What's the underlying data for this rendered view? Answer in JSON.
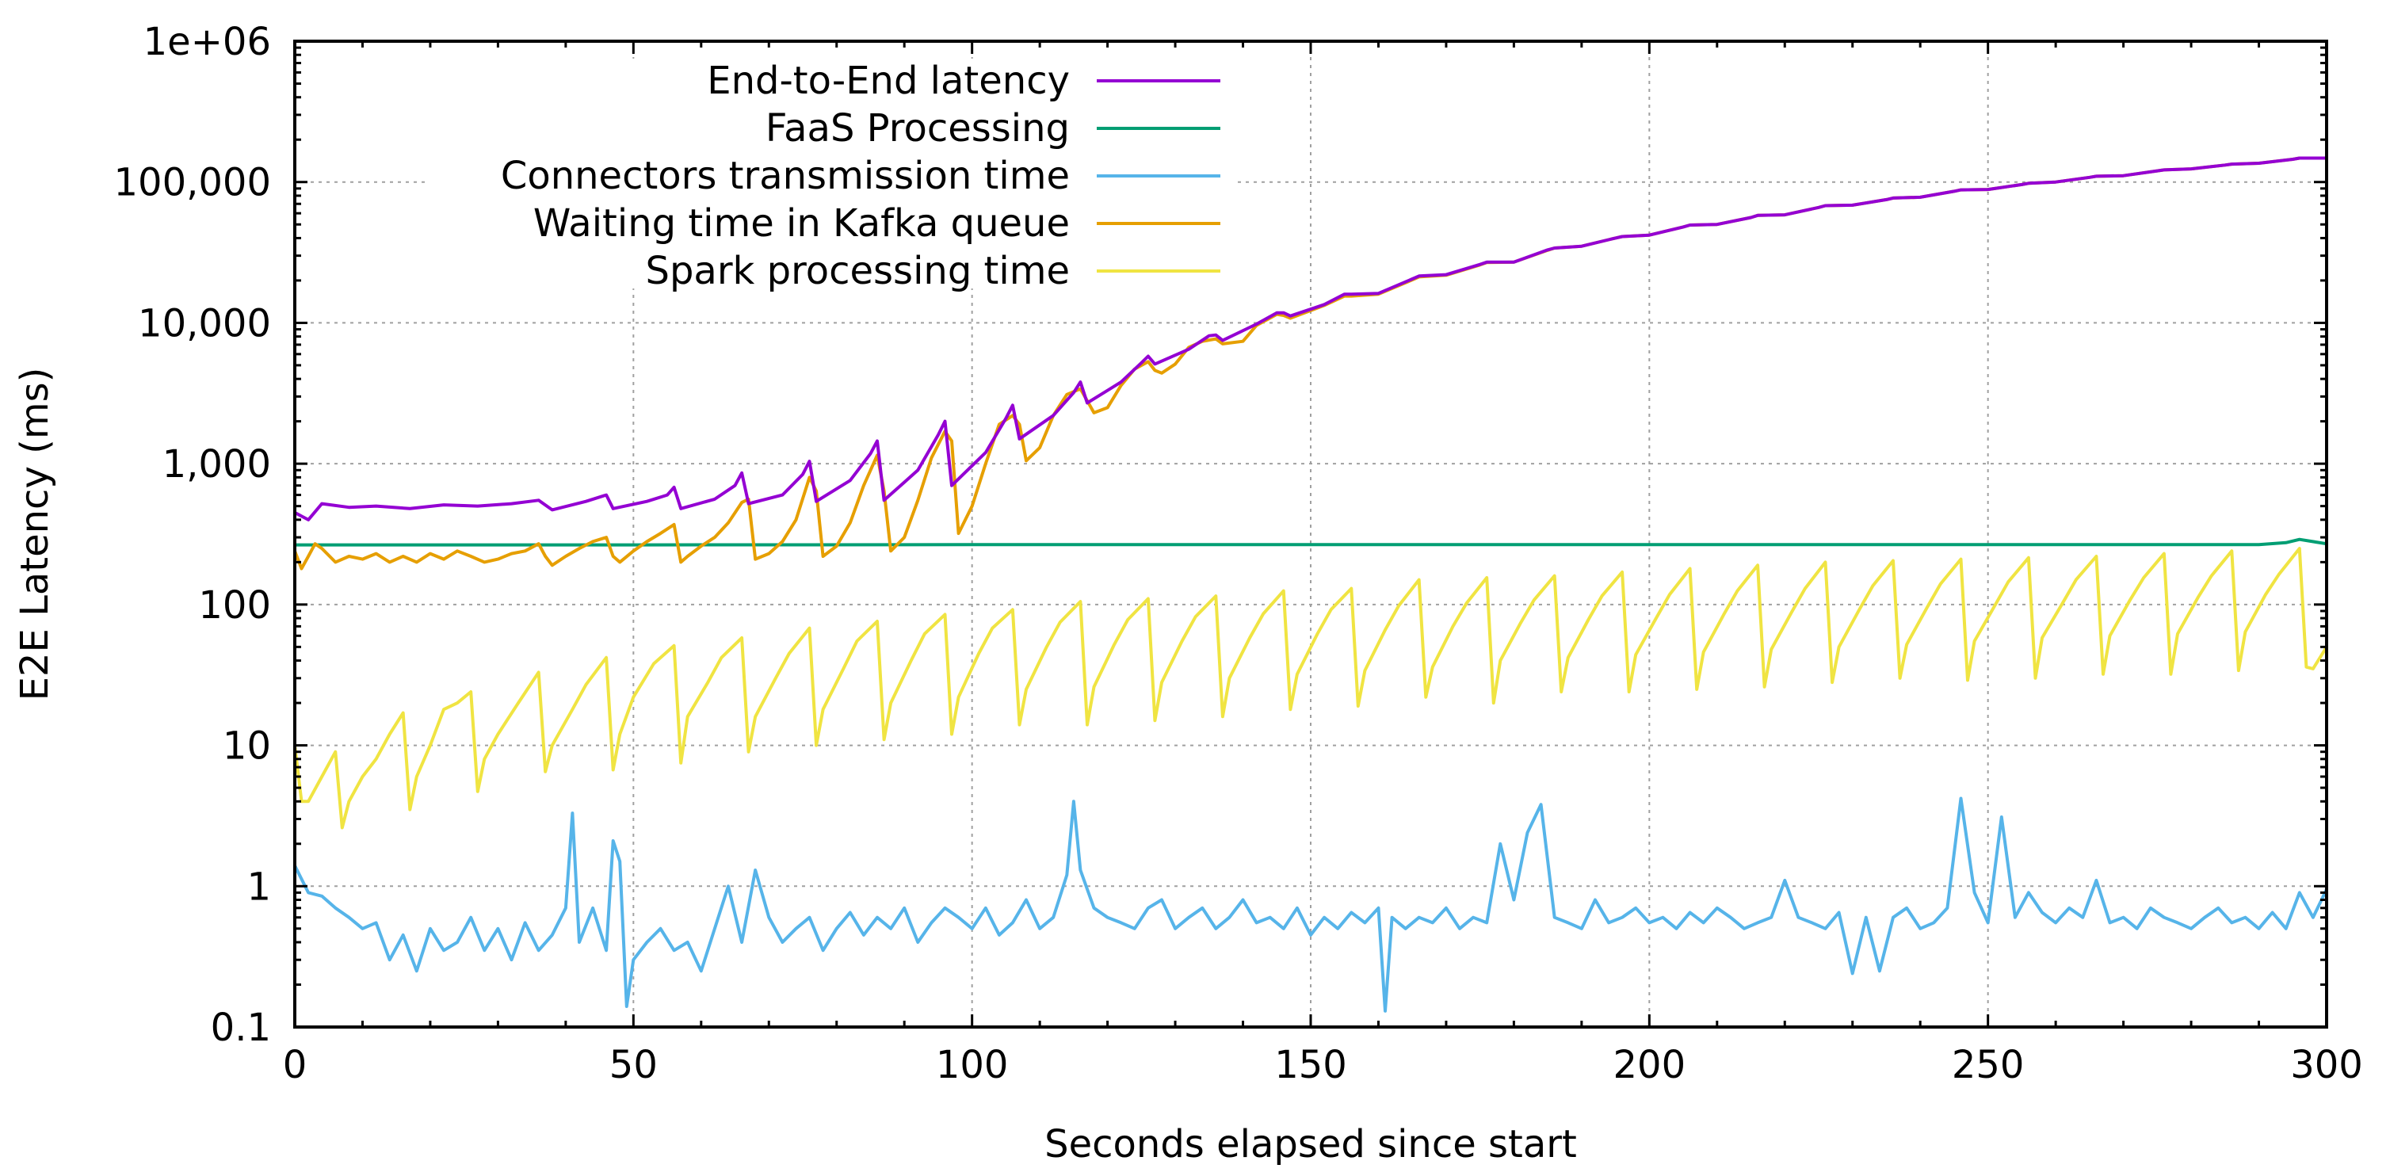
{
  "chart_data": {
    "type": "line",
    "title": "",
    "xlabel": "Seconds elapsed since start",
    "ylabel": "E2E Latency (ms)",
    "x_range": [
      0,
      300
    ],
    "y_range": [
      0.1,
      1000000
    ],
    "y_scale": "log",
    "grid": true,
    "legend_position": "top-left",
    "x_ticks": [
      {
        "value": 0,
        "label": "0"
      },
      {
        "value": 50,
        "label": "50"
      },
      {
        "value": 100,
        "label": "100"
      },
      {
        "value": 150,
        "label": "150"
      },
      {
        "value": 200,
        "label": "200"
      },
      {
        "value": 250,
        "label": "250"
      },
      {
        "value": 300,
        "label": "300"
      }
    ],
    "y_ticks": [
      {
        "value": 0.1,
        "label": "0.1"
      },
      {
        "value": 1,
        "label": "1"
      },
      {
        "value": 10,
        "label": "10"
      },
      {
        "value": 100,
        "label": "100"
      },
      {
        "value": 1000,
        "label": "1,000"
      },
      {
        "value": 10000,
        "label": "10,000"
      },
      {
        "value": 100000,
        "label": "100,000"
      },
      {
        "value": 1000000,
        "label": "1e+06"
      }
    ],
    "series": [
      {
        "name": "End-to-End latency",
        "color": "#9400d3",
        "x": [
          0,
          2,
          4,
          8,
          12,
          17,
          22,
          27,
          32,
          36,
          38,
          43,
          46,
          47,
          52,
          55,
          56,
          57,
          62,
          65,
          66,
          67,
          72,
          75,
          76,
          77,
          82,
          85,
          86,
          87,
          92,
          95,
          96,
          97,
          102,
          105,
          106,
          107,
          112,
          115,
          116,
          117,
          122,
          125,
          126,
          127,
          132,
          135,
          136,
          137,
          142,
          145,
          146,
          147,
          152,
          155,
          156,
          160,
          165,
          166,
          170,
          175,
          176,
          180,
          185,
          186,
          190,
          195,
          196,
          200,
          205,
          206,
          210,
          215,
          216,
          220,
          225,
          226,
          230,
          235,
          236,
          240,
          245,
          246,
          250,
          255,
          256,
          260,
          265,
          266,
          270,
          275,
          276,
          280,
          285,
          286,
          290,
          295,
          296,
          300
        ],
        "values": [
          450,
          400,
          520,
          490,
          500,
          480,
          510,
          500,
          520,
          550,
          470,
          540,
          600,
          480,
          540,
          600,
          680,
          480,
          560,
          700,
          860,
          520,
          600,
          840,
          1040,
          540,
          760,
          1180,
          1450,
          550,
          900,
          1600,
          2000,
          700,
          1200,
          2100,
          2600,
          1500,
          2200,
          3200,
          3800,
          2700,
          3800,
          5200,
          5800,
          5100,
          6500,
          8100,
          8200,
          7500,
          9800,
          11800,
          11800,
          11200,
          13500,
          16000,
          16000,
          16200,
          20500,
          21500,
          22000,
          26000,
          27000,
          27000,
          33000,
          34000,
          35000,
          40000,
          41000,
          42000,
          48000,
          49500,
          50000,
          56000,
          58000,
          58500,
          66000,
          68000,
          68500,
          75000,
          77000,
          78000,
          86000,
          88000,
          88500,
          96000,
          98000,
          100000,
          108000,
          110000,
          111000,
          120000,
          122000,
          124000,
          132000,
          134000,
          136000,
          145000,
          148000,
          148000
        ]
      },
      {
        "name": "FaaS Processing",
        "color": "#009e73",
        "x": [
          0,
          50,
          100,
          150,
          200,
          250,
          290,
          294,
          296,
          300
        ],
        "values": [
          265,
          265,
          266,
          266,
          266,
          266,
          266,
          275,
          290,
          270
        ]
      },
      {
        "name": "Connectors transmission time",
        "color": "#56b4e9",
        "x": [
          0,
          2,
          4,
          6,
          8,
          10,
          12,
          14,
          16,
          18,
          20,
          22,
          24,
          26,
          28,
          30,
          32,
          34,
          36,
          38,
          40,
          41,
          42,
          44,
          46,
          47,
          48,
          49,
          50,
          52,
          54,
          56,
          58,
          60,
          62,
          64,
          66,
          68,
          70,
          72,
          74,
          76,
          78,
          80,
          82,
          84,
          86,
          88,
          90,
          92,
          94,
          96,
          98,
          100,
          102,
          104,
          106,
          108,
          110,
          112,
          114,
          115,
          116,
          118,
          120,
          122,
          124,
          126,
          128,
          130,
          132,
          134,
          136,
          138,
          140,
          142,
          144,
          146,
          148,
          150,
          152,
          154,
          156,
          158,
          160,
          161,
          162,
          164,
          166,
          168,
          170,
          172,
          174,
          176,
          178,
          180,
          182,
          184,
          186,
          188,
          190,
          192,
          194,
          196,
          198,
          200,
          202,
          204,
          206,
          208,
          210,
          212,
          214,
          216,
          218,
          220,
          222,
          224,
          226,
          228,
          230,
          232,
          234,
          236,
          238,
          240,
          242,
          244,
          246,
          248,
          250,
          252,
          254,
          256,
          258,
          260,
          262,
          264,
          266,
          268,
          270,
          272,
          274,
          276,
          278,
          280,
          282,
          284,
          286,
          288,
          290,
          292,
          294,
          296,
          298,
          300
        ],
        "values": [
          1.4,
          0.9,
          0.85,
          0.7,
          0.6,
          0.5,
          0.55,
          0.3,
          0.45,
          0.25,
          0.5,
          0.35,
          0.4,
          0.6,
          0.35,
          0.5,
          0.3,
          0.55,
          0.35,
          0.45,
          0.7,
          3.3,
          0.4,
          0.7,
          0.35,
          2.1,
          1.5,
          0.14,
          0.3,
          0.4,
          0.5,
          0.35,
          0.4,
          0.25,
          0.5,
          1.0,
          0.4,
          1.3,
          0.6,
          0.4,
          0.5,
          0.6,
          0.35,
          0.5,
          0.65,
          0.45,
          0.6,
          0.5,
          0.7,
          0.4,
          0.55,
          0.7,
          0.6,
          0.5,
          0.7,
          0.45,
          0.55,
          0.8,
          0.5,
          0.6,
          1.2,
          4.0,
          1.3,
          0.7,
          0.6,
          0.55,
          0.5,
          0.7,
          0.8,
          0.5,
          0.6,
          0.7,
          0.5,
          0.6,
          0.8,
          0.55,
          0.6,
          0.5,
          0.7,
          0.45,
          0.6,
          0.5,
          0.65,
          0.55,
          0.7,
          0.13,
          0.6,
          0.5,
          0.6,
          0.55,
          0.7,
          0.5,
          0.6,
          0.55,
          2.0,
          0.8,
          2.4,
          3.8,
          0.6,
          0.55,
          0.5,
          0.8,
          0.55,
          0.6,
          0.7,
          0.55,
          0.6,
          0.5,
          0.65,
          0.55,
          0.7,
          0.6,
          0.5,
          0.55,
          0.6,
          1.1,
          0.6,
          0.55,
          0.5,
          0.65,
          0.24,
          0.6,
          0.25,
          0.6,
          0.7,
          0.5,
          0.55,
          0.7,
          4.2,
          0.9,
          0.55,
          3.1,
          0.6,
          0.9,
          0.65,
          0.55,
          0.7,
          0.6,
          1.1,
          0.55,
          0.6,
          0.5,
          0.7,
          0.6,
          0.55,
          0.5,
          0.6,
          0.7,
          0.55,
          0.6,
          0.5,
          0.65,
          0.5,
          0.9,
          0.6,
          0.95
        ]
      },
      {
        "name": "Waiting time in Kafka queue",
        "color": "#e69f00",
        "x": [
          0,
          1,
          2,
          3,
          4,
          6,
          8,
          10,
          12,
          14,
          16,
          18,
          20,
          22,
          24,
          26,
          28,
          30,
          32,
          34,
          36,
          37,
          38,
          40,
          42,
          44,
          46,
          47,
          48,
          50,
          52,
          54,
          56,
          57,
          58,
          60,
          62,
          64,
          66,
          67,
          68,
          70,
          72,
          74,
          76,
          77,
          78,
          80,
          82,
          84,
          86,
          87,
          88,
          90,
          92,
          94,
          96,
          97,
          98,
          100,
          102,
          104,
          106,
          107,
          108,
          110,
          112,
          114,
          116,
          117,
          118,
          120,
          122,
          124,
          126,
          127,
          128,
          130,
          132,
          134,
          136,
          137,
          140,
          142,
          145,
          146,
          147,
          152,
          155,
          156,
          160,
          165,
          166,
          170,
          175,
          176,
          180,
          185,
          186,
          190,
          195,
          196,
          200,
          205,
          206,
          210,
          215,
          216,
          220,
          225,
          226,
          230,
          235,
          236,
          240,
          245,
          246,
          250,
          255,
          256,
          260,
          265,
          266,
          270,
          275,
          276,
          280,
          285,
          286,
          290,
          295,
          296,
          300
        ],
        "values": [
          240,
          180,
          220,
          270,
          250,
          200,
          220,
          210,
          230,
          200,
          220,
          200,
          230,
          210,
          240,
          220,
          200,
          210,
          230,
          240,
          270,
          220,
          190,
          220,
          250,
          280,
          300,
          220,
          200,
          240,
          280,
          320,
          370,
          200,
          220,
          260,
          300,
          380,
          530,
          560,
          210,
          230,
          280,
          400,
          800,
          640,
          220,
          260,
          380,
          700,
          1150,
          640,
          240,
          300,
          550,
          1100,
          1700,
          1450,
          320,
          500,
          1000,
          1900,
          2200,
          1900,
          1050,
          1300,
          2200,
          3100,
          3400,
          2800,
          2300,
          2500,
          3600,
          4700,
          5300,
          4600,
          4400,
          5100,
          6700,
          7400,
          7700,
          7100,
          7400,
          9600,
          11500,
          11300,
          10800,
          13300,
          15500,
          15500,
          16000,
          20200,
          21200,
          21800,
          25800,
          26800,
          27000,
          32800,
          34000,
          35000,
          40000,
          41000,
          42000,
          48000,
          49500,
          50000,
          56000,
          58000,
          58500,
          66000,
          68000,
          68500,
          75000,
          77000,
          78000,
          86000,
          88000,
          88500,
          96000,
          98000,
          100000,
          108000,
          110000,
          111000,
          120000,
          122000,
          124000,
          132000,
          134000,
          136000,
          145000,
          148000,
          148000
        ]
      },
      {
        "name": "Spark processing time",
        "color": "#f0e442",
        "x": [
          0,
          1,
          2,
          4,
          6,
          7,
          8,
          10,
          12,
          14,
          16,
          17,
          18,
          20,
          22,
          24,
          26,
          27,
          28,
          30,
          33,
          36,
          37,
          38,
          41,
          43,
          46,
          47,
          48,
          50,
          53,
          56,
          57,
          58,
          61,
          63,
          66,
          67,
          68,
          71,
          73,
          76,
          77,
          78,
          81,
          83,
          86,
          87,
          88,
          91,
          93,
          96,
          97,
          98,
          101,
          103,
          106,
          107,
          108,
          111,
          113,
          116,
          117,
          118,
          121,
          123,
          126,
          127,
          128,
          131,
          133,
          136,
          137,
          138,
          141,
          143,
          146,
          147,
          148,
          151,
          153,
          156,
          157,
          158,
          161,
          163,
          166,
          167,
          168,
          171,
          173,
          176,
          177,
          178,
          181,
          183,
          186,
          187,
          188,
          191,
          193,
          196,
          197,
          198,
          201,
          203,
          206,
          207,
          208,
          211,
          213,
          216,
          217,
          218,
          221,
          223,
          226,
          227,
          228,
          231,
          233,
          236,
          237,
          238,
          241,
          243,
          246,
          247,
          248,
          251,
          253,
          256,
          257,
          258,
          261,
          263,
          266,
          267,
          268,
          271,
          273,
          276,
          277,
          278,
          281,
          283,
          286,
          287,
          288,
          291,
          293,
          296,
          297,
          298,
          300
        ],
        "values": [
          10,
          4,
          4,
          6,
          9,
          2.6,
          4,
          6,
          8,
          12,
          17,
          3.5,
          6,
          10,
          18,
          20,
          24,
          4.7,
          8,
          12,
          20,
          33,
          6.5,
          10,
          18,
          27,
          42,
          6.7,
          12,
          22,
          38,
          51,
          7.5,
          16,
          28,
          42,
          58,
          9,
          16,
          30,
          45,
          68,
          10,
          18,
          35,
          55,
          76,
          11,
          20,
          40,
          62,
          85,
          12,
          22,
          45,
          68,
          92,
          14,
          25,
          50,
          75,
          105,
          14,
          26,
          52,
          78,
          110,
          15,
          28,
          55,
          82,
          115,
          16,
          30,
          58,
          86,
          125,
          18,
          32,
          62,
          92,
          130,
          19,
          34,
          66,
          98,
          150,
          22,
          36,
          70,
          102,
          155,
          20,
          40,
          74,
          108,
          160,
          24,
          42,
          78,
          115,
          170,
          24,
          44,
          80,
          118,
          180,
          25,
          46,
          85,
          125,
          190,
          26,
          48,
          88,
          130,
          200,
          28,
          50,
          92,
          136,
          205,
          30,
          52,
          95,
          140,
          210,
          29,
          55,
          98,
          145,
          215,
          30,
          58,
          102,
          150,
          220,
          32,
          60,
          108,
          155,
          230,
          32,
          62,
          112,
          160,
          240,
          34,
          64,
          118,
          165,
          250,
          36,
          35,
          50
        ]
      }
    ]
  }
}
